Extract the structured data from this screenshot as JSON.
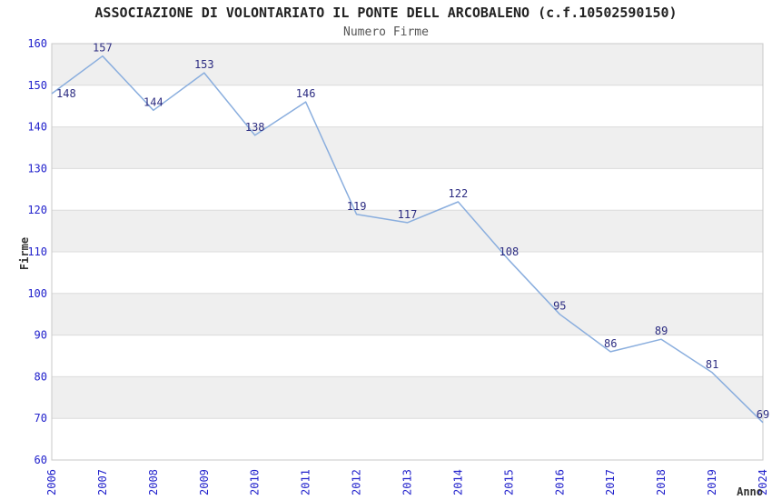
{
  "title": "ASSOCIAZIONE DI VOLONTARIATO IL PONTE DELL ARCOBALENO (c.f.10502590150)",
  "subtitle": "Numero Firme",
  "chart_data": {
    "type": "line",
    "title": "ASSOCIAZIONE DI VOLONTARIATO IL PONTE DELL ARCOBALENO (c.f.10502590150)",
    "subtitle": "Numero Firme",
    "categories": [
      "2006",
      "2007",
      "2008",
      "2009",
      "2010",
      "2011",
      "2012",
      "2013",
      "2014",
      "2015",
      "2016",
      "2017",
      "2018",
      "2019",
      "2024"
    ],
    "values": [
      148,
      157,
      144,
      153,
      138,
      146,
      119,
      117,
      122,
      108,
      95,
      86,
      89,
      81,
      69
    ],
    "xlabel": "Anno",
    "ylabel": "Firme",
    "ylim": [
      60,
      160
    ],
    "ytick_step": 10,
    "yticks": [
      60,
      70,
      80,
      90,
      100,
      110,
      120,
      130,
      140,
      150,
      160
    ],
    "grid": "horizontal-bands-alternating",
    "legend": "none",
    "data_labels_visible": true,
    "colors": {
      "background": "#FFFFFF",
      "line": "#8AAEDE",
      "data_label": "#2D2D82",
      "tick_label": "#2222CC",
      "band_fill": "#EFEFEF",
      "grid_line": "#DCDCDC",
      "plot_border": "#C8C8C8",
      "title": "#222222",
      "subtitle": "#555555",
      "axis_title": "#333333"
    }
  }
}
